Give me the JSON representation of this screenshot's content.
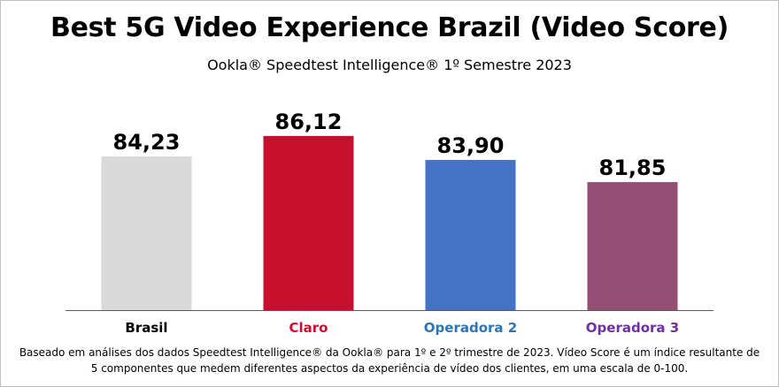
{
  "chart_data": {
    "type": "bar",
    "title": "Best 5G Video Experience Brazil (Video Score)",
    "subtitle": "Ookla® Speedtest Intelligence® 1º Semestre 2023",
    "categories": [
      "Brasil",
      "Claro",
      "Operadora 2",
      "Operadora 3"
    ],
    "values": [
      84.23,
      86.12,
      83.9,
      81.85
    ],
    "value_labels": [
      "84,23",
      "86,12",
      "83,90",
      "81,85"
    ],
    "bar_colors": [
      "#d9d9d9",
      "#c8102e",
      "#4472c4",
      "#944f75"
    ],
    "label_colors": [
      "#000000",
      "#c8102e",
      "#2e75b6",
      "#7030a0"
    ],
    "xlabel": "",
    "ylabel": "",
    "ylim": [
      70,
      87.5
    ],
    "grid": false,
    "legend": "none"
  },
  "footnote": {
    "line1": "Baseado em análises dos dados Speedtest Intelligence® da Ookla® para 1º e 2º trimestre de 2023. Vídeo Score é um índice resultante de",
    "line2": "5 componentes que medem diferentes aspectos da experiência de vídeo dos clientes, em uma escala de 0-100."
  }
}
